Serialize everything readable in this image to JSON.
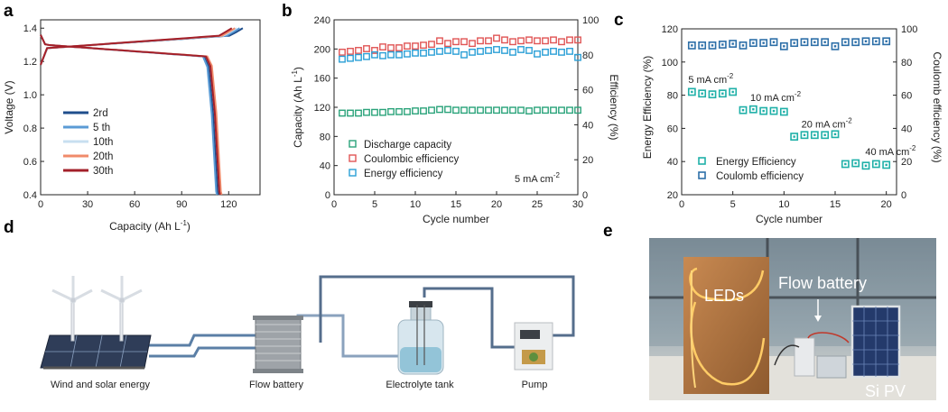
{
  "panel_letters": {
    "a": "a",
    "b": "b",
    "c": "c",
    "d": "d",
    "e": "e"
  },
  "colors": {
    "dark_blue": "#1f4e8c",
    "mid_blue": "#5b9bd5",
    "light_blue": "#c8dff0",
    "orange": "#f08a6a",
    "dark_red": "#a3202a",
    "green": "#2aa37a",
    "red": "#e05555",
    "cyan": "#2a9fd6",
    "teal": "#1fb0a8",
    "navy": "#2d6fa8"
  },
  "chart_data": [
    {
      "panel": "a",
      "type": "line",
      "xlabel": "Capacity (Ah L",
      "xlabel_sup": "-1",
      "xlabel_end": ")",
      "ylabel": "Voltage (V)",
      "xlim": [
        0,
        140
      ],
      "ylim": [
        0.4,
        1.45
      ],
      "xticks": [
        0,
        30,
        60,
        90,
        120
      ],
      "yticks": [
        0.4,
        0.6,
        0.8,
        1.0,
        1.2,
        1.4
      ],
      "ytick_labels": [
        "0.4",
        "0.6",
        "0.8",
        "1.0",
        "1.2",
        "1.4"
      ],
      "series": [
        {
          "name": "2rd",
          "color": "#1f4e8c",
          "discharge_end": 113,
          "charge_end": 129
        },
        {
          "name": "5 th",
          "color": "#5b9bd5",
          "discharge_end": 112,
          "charge_end": 127
        },
        {
          "name": "10th",
          "color": "#c8dff0",
          "discharge_end": 114,
          "charge_end": 125
        },
        {
          "name": "20th",
          "color": "#f08a6a",
          "discharge_end": 115,
          "charge_end": 124
        },
        {
          "name": "30th",
          "color": "#a3202a",
          "discharge_end": 114,
          "charge_end": 122
        }
      ]
    },
    {
      "panel": "b",
      "type": "scatter",
      "xlabel": "Cycle number",
      "ylabel_left": "Capacity (Ah L",
      "ylabel_left_sup": "-1",
      "ylabel_left_end": ")",
      "ylabel_right": "Efficiency (%)",
      "xlim": [
        0,
        30
      ],
      "ylim_left": [
        0,
        240
      ],
      "ylim_right": [
        0,
        100
      ],
      "xticks": [
        0,
        5,
        10,
        15,
        20,
        25,
        30
      ],
      "yticks_left": [
        0,
        40,
        80,
        120,
        160,
        200,
        240
      ],
      "yticks_right": [
        0,
        20,
        40,
        60,
        80,
        100
      ],
      "annotation": "5 mA cm",
      "annotation_sup": "-2",
      "series": [
        {
          "name": "Discharge capacity",
          "color": "#2aa37a",
          "axis": "left",
          "values": [
            112,
            112,
            112,
            113,
            113,
            113,
            114,
            114,
            114,
            115,
            115,
            116,
            117,
            117,
            116,
            116,
            116,
            116,
            116,
            116,
            116,
            116,
            116,
            115,
            116,
            116,
            116,
            116,
            116,
            116
          ]
        },
        {
          "name": "Coulombic efficiency",
          "color": "#e05555",
          "axis": "right",
          "values": [
            81.5,
            82,
            82.5,
            83.5,
            82.5,
            84.5,
            84,
            84,
            85,
            85,
            85.5,
            86,
            88,
            86.5,
            87.5,
            87.5,
            86.5,
            88,
            88,
            89.5,
            88.5,
            87.5,
            88,
            88.5,
            88,
            88,
            88.5,
            87.5,
            88.5,
            88.5
          ]
        },
        {
          "name": "Energy efficiency",
          "color": "#2a9fd6",
          "axis": "right",
          "values": [
            77.5,
            78,
            78.5,
            79,
            80,
            79.5,
            80,
            80,
            80.5,
            81,
            81,
            81.5,
            82,
            82.5,
            82,
            80,
            81.5,
            82,
            82.5,
            83,
            82.5,
            81.5,
            83,
            82.5,
            80.5,
            81.5,
            82,
            81.5,
            82,
            78.5
          ]
        }
      ]
    },
    {
      "panel": "c",
      "type": "scatter",
      "xlabel": "Cycle number",
      "ylabel_left": "Energy Efficiency (%)",
      "ylabel_right": "Coulomb efficiency (%)",
      "xlim": [
        0,
        21
      ],
      "ylim_left": [
        20,
        120
      ],
      "ylim_right": [
        0,
        100
      ],
      "xticks": [
        0,
        5,
        10,
        15,
        20
      ],
      "yticks_left": [
        20,
        40,
        60,
        80,
        100,
        120
      ],
      "yticks_right": [
        0,
        20,
        40,
        60,
        80,
        100
      ],
      "annotations": [
        {
          "text": "5 mA cm",
          "sup": "-2"
        },
        {
          "text": "10 mA cm",
          "sup": "-2"
        },
        {
          "text": "20 mA cm",
          "sup": "-2"
        },
        {
          "text": "40 mA cm",
          "sup": "-2"
        }
      ],
      "series": [
        {
          "name": "Energy Efficiency",
          "color": "#1fb0a8",
          "axis": "left",
          "values": [
            82,
            81,
            80.5,
            81,
            82,
            71,
            71.5,
            70.5,
            70.5,
            70,
            55,
            56,
            56,
            56,
            56.5,
            38.5,
            39,
            37.5,
            38.5,
            38
          ]
        },
        {
          "name": "Coulomb efficiency",
          "color": "#2d6fa8",
          "axis": "right",
          "values": [
            90,
            90,
            90,
            90.5,
            91,
            90,
            91.5,
            91.5,
            92,
            89.5,
            91.5,
            92,
            92,
            92,
            89.5,
            92,
            92,
            92.5,
            92.5,
            92.5
          ]
        }
      ]
    }
  ],
  "diagram_d": {
    "labels": {
      "wind_solar": "Wind and solar energy",
      "flow_battery": "Flow battery",
      "electrolyte_tank": "Electrolyte tank",
      "pump": "Pump"
    }
  },
  "photo_e": {
    "labels": {
      "leds": "LEDs",
      "flow_battery": "Flow battery",
      "si_pv": "Si PV"
    }
  }
}
